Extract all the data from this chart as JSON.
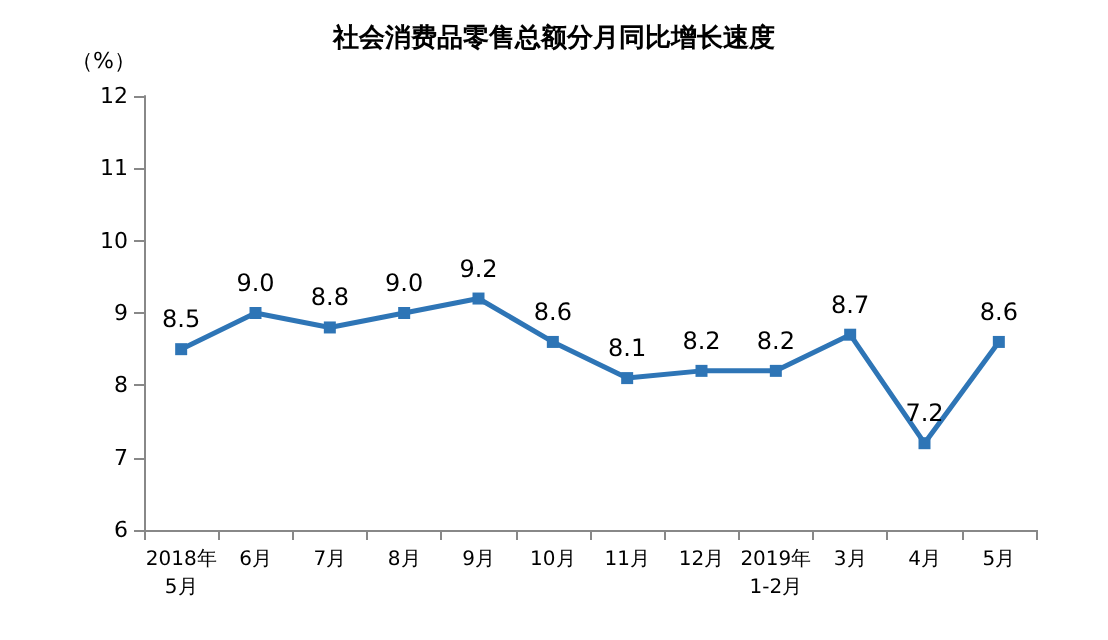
{
  "chart_data": {
    "type": "line",
    "title": "社会消费品零售总额分月同比增长速度",
    "ylabel": "（%）",
    "categories": [
      "2018年\n5月",
      "6月",
      "7月",
      "8月",
      "9月",
      "10月",
      "11月",
      "12月",
      "2019年\n1-2月",
      "3月",
      "4月",
      "5月"
    ],
    "series": [
      {
        "color": "#2e75b6",
        "values": [
          8.5,
          9.0,
          8.8,
          9.0,
          9.2,
          8.6,
          8.1,
          8.2,
          8.2,
          8.7,
          7.2,
          8.6
        ],
        "value_labels": [
          "8.5",
          "9.0",
          "8.8",
          "9.0",
          "9.2",
          "8.6",
          "8.1",
          "8.2",
          "8.2",
          "8.7",
          "7.2",
          "8.6"
        ]
      }
    ],
    "ylim": [
      6,
      12
    ],
    "yticks": [
      6,
      7,
      8,
      9,
      10,
      11,
      12
    ],
    "grid": false,
    "marker": "square",
    "line_style": "solid"
  }
}
